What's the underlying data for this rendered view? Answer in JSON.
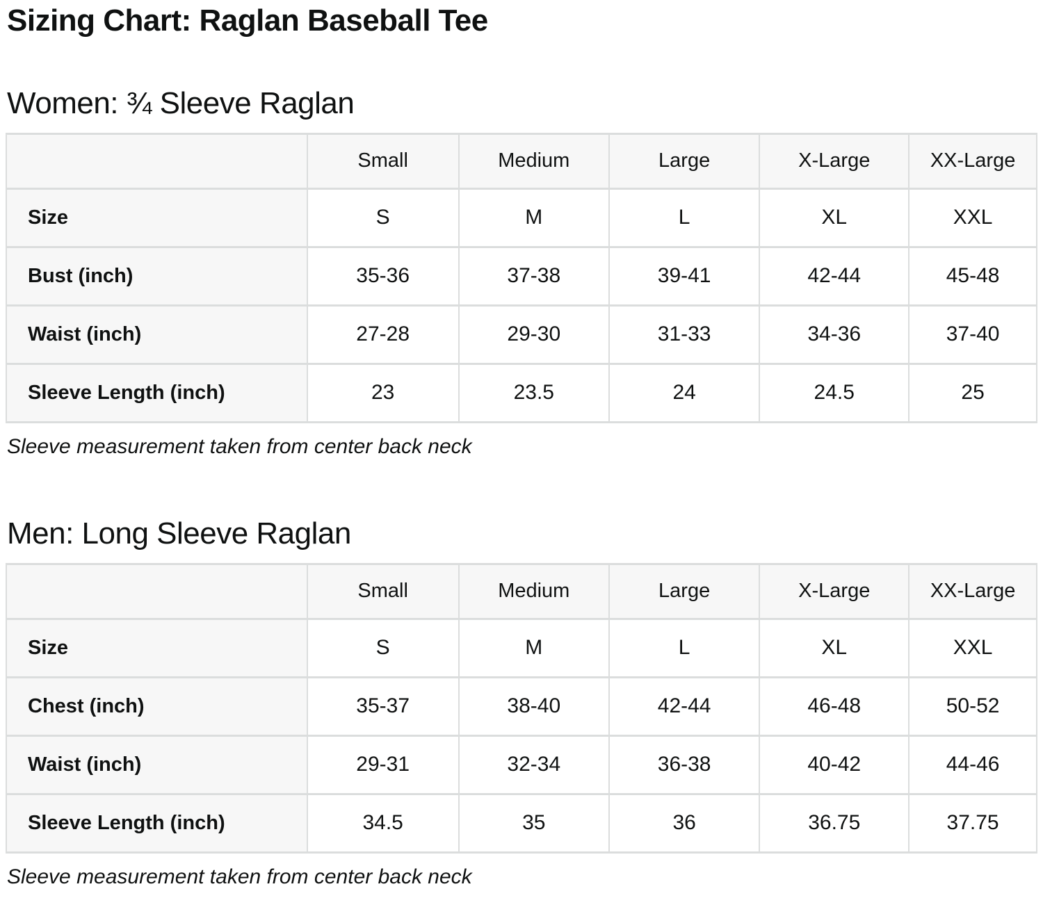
{
  "title": "Sizing Chart: Raglan Baseball Tee",
  "colors": {
    "text": "#0f1111",
    "header_cell_bg": "#f7f7f7",
    "data_cell_bg": "#ffffff",
    "border": "#dbdddd"
  },
  "sections": [
    {
      "heading": "Women: ¾ Sleeve Raglan",
      "note": "Sleeve measurement taken from center back neck",
      "table": {
        "column_headers": [
          "",
          "Small",
          "Medium",
          "Large",
          "X-Large",
          "XX-Large"
        ],
        "rows": [
          {
            "label": "Size",
            "values": [
              "S",
              "M",
              "L",
              "XL",
              "XXL"
            ]
          },
          {
            "label": "Bust (inch)",
            "values": [
              "35-36",
              "37-38",
              "39-41",
              "42-44",
              "45-48"
            ]
          },
          {
            "label": "Waist (inch)",
            "values": [
              "27-28",
              "29-30",
              "31-33",
              "34-36",
              "37-40"
            ]
          },
          {
            "label": "Sleeve Length (inch)",
            "values": [
              "23",
              "23.5",
              "24",
              "24.5",
              "25"
            ]
          }
        ]
      }
    },
    {
      "heading": "Men: Long Sleeve Raglan",
      "note": "Sleeve measurement taken from center back neck",
      "table": {
        "column_headers": [
          "",
          "Small",
          "Medium",
          "Large",
          "X-Large",
          "XX-Large"
        ],
        "rows": [
          {
            "label": "Size",
            "values": [
              "S",
              "M",
              "L",
              "XL",
              "XXL"
            ]
          },
          {
            "label": "Chest (inch)",
            "values": [
              "35-37",
              "38-40",
              "42-44",
              "46-48",
              "50-52"
            ]
          },
          {
            "label": "Waist (inch)",
            "values": [
              "29-31",
              "32-34",
              "36-38",
              "40-42",
              "44-46"
            ]
          },
          {
            "label": "Sleeve Length (inch)",
            "values": [
              "34.5",
              "35",
              "36",
              "36.75",
              "37.75"
            ]
          }
        ]
      }
    }
  ]
}
